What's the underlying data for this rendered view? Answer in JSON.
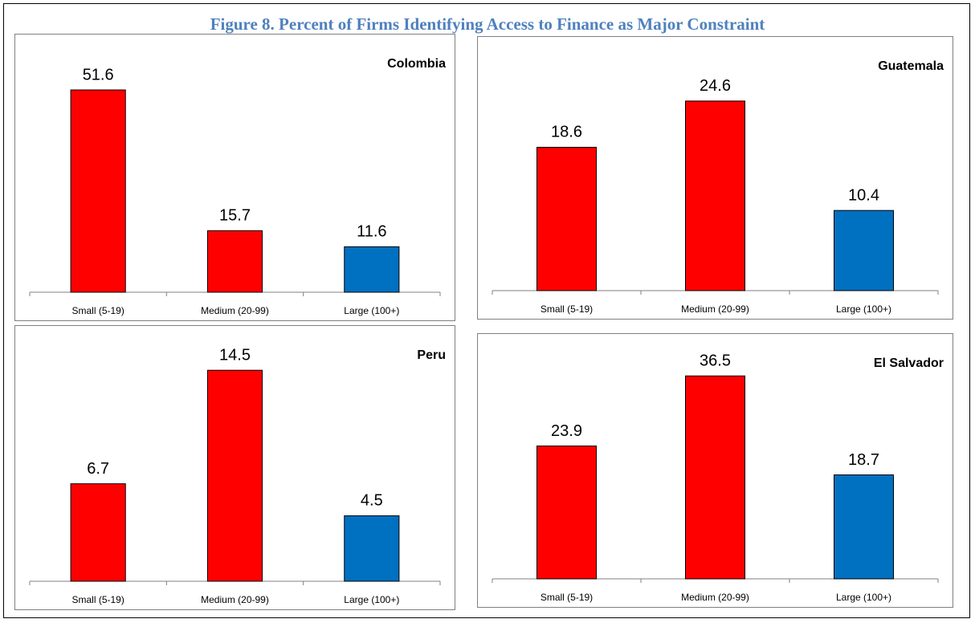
{
  "title": "Figure 8. Percent of Firms Identifying Access to Finance as Major Constraint",
  "chart_data": [
    {
      "type": "bar",
      "title": "Colombia",
      "categories": [
        "Small (5-19)",
        "Medium (20-99)",
        "Large (100+)"
      ],
      "values": [
        51.6,
        15.7,
        11.6
      ],
      "colors": [
        "#ff0000",
        "#ff0000",
        "#0070c0"
      ],
      "ylim": [
        0,
        60
      ]
    },
    {
      "type": "bar",
      "title": "Guatemala",
      "categories": [
        "Small (5-19)",
        "Medium (20-99)",
        "Large (100+)"
      ],
      "values": [
        18.6,
        24.6,
        10.4
      ],
      "colors": [
        "#ff0000",
        "#ff0000",
        "#0070c0"
      ],
      "ylim": [
        0,
        30
      ]
    },
    {
      "type": "bar",
      "title": "Peru",
      "categories": [
        "Small (5-19)",
        "Medium (20-99)",
        "Large (100+)"
      ],
      "values": [
        6.7,
        14.5,
        4.5
      ],
      "colors": [
        "#ff0000",
        "#ff0000",
        "#0070c0"
      ],
      "ylim": [
        0,
        16
      ]
    },
    {
      "type": "bar",
      "title": "El Salvador",
      "categories": [
        "Small (5-19)",
        "Medium (20-99)",
        "Large (100+)"
      ],
      "values": [
        23.9,
        36.5,
        18.7
      ],
      "colors": [
        "#ff0000",
        "#ff0000",
        "#0070c0"
      ],
      "ylim": [
        0,
        40
      ]
    }
  ]
}
